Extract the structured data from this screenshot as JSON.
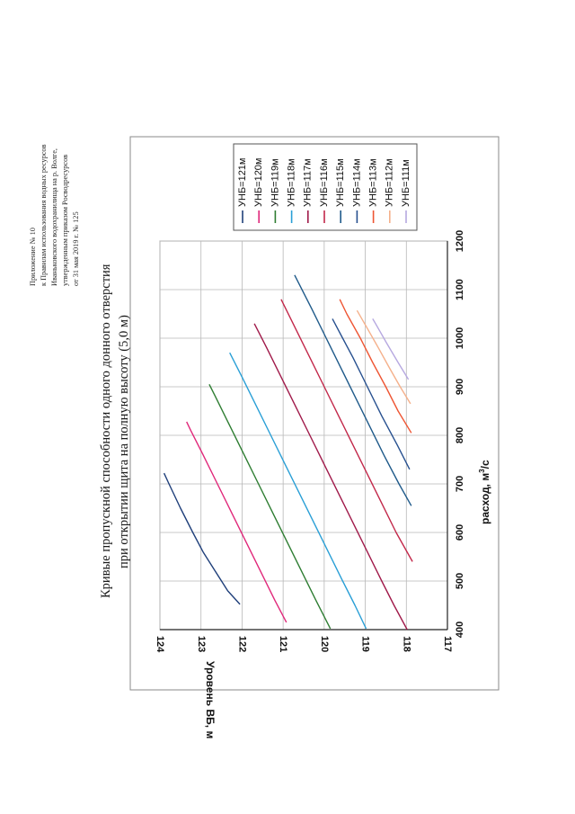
{
  "header": {
    "lines": [
      "Приложение № 10",
      "к Правилам использования водных ресурсов",
      "Иваньковского водохранилища на р. Волге,",
      "утвержденным приказом Росводресурсов",
      "от 31 мая 2019 г. № 125"
    ]
  },
  "chart_data": {
    "type": "line",
    "title": [
      "Кривые пропускной способности одного донного отверстия",
      "при открытии щита на полную высоту (5,0 м)"
    ],
    "xlabel_main": "расход, м",
    "xlabel_sup": "3",
    "xlabel_tail": "/с",
    "ylabel": "Уровень ВБ, м",
    "xlim": [
      400,
      1200
    ],
    "ylim": [
      117,
      124
    ],
    "xticks": [
      "400",
      "500",
      "600",
      "700",
      "800",
      "900",
      "1000",
      "1100",
      "1200"
    ],
    "yticks": [
      "117",
      "118",
      "119",
      "120",
      "121",
      "122",
      "123",
      "124"
    ],
    "grid": true,
    "rotation": "page rotated 90° counter-clockwise (landscape chart on portrait sheet)",
    "legend_position": "top-right",
    "series": [
      {
        "name": "УНБ=121м",
        "color": "#1f3f7a",
        "x": [
          452,
          480,
          520,
          560,
          600,
          650,
          700,
          722
        ],
        "y": [
          122.05,
          122.35,
          122.65,
          122.95,
          123.2,
          123.5,
          123.78,
          123.9
        ]
      },
      {
        "name": "УНБ=120м",
        "color": "#e0287a",
        "x": [
          415,
          460,
          520,
          580,
          640,
          700,
          760,
          810,
          828
        ],
        "y": [
          120.92,
          121.2,
          121.55,
          121.9,
          122.25,
          122.6,
          122.95,
          123.25,
          123.35
        ]
      },
      {
        "name": "УНБ=119м",
        "color": "#2e7d32",
        "x": [
          402,
          460,
          520,
          580,
          640,
          700,
          760,
          820,
          880,
          905
        ],
        "y": [
          119.85,
          120.2,
          120.55,
          120.9,
          121.25,
          121.6,
          121.95,
          122.3,
          122.65,
          122.8
        ]
      },
      {
        "name": "УНБ=118м",
        "color": "#2a9fd6",
        "x": [
          402,
          450,
          500,
          560,
          620,
          680,
          740,
          800,
          860,
          920,
          970
        ],
        "y": [
          118.98,
          119.25,
          119.55,
          119.9,
          120.25,
          120.6,
          120.95,
          121.3,
          121.65,
          122.0,
          122.3
        ]
      },
      {
        "name": "УНБ=117м",
        "color": "#a01a4a",
        "x": [
          400,
          450,
          500,
          560,
          620,
          680,
          740,
          800,
          860,
          920,
          980,
          1030
        ],
        "y": [
          117.98,
          118.3,
          118.6,
          118.95,
          119.3,
          119.65,
          120.0,
          120.35,
          120.7,
          121.05,
          121.4,
          121.7
        ]
      },
      {
        "name": "УНБ=116м",
        "color": "#c2284a",
        "x": [
          540,
          600,
          660,
          720,
          780,
          840,
          900,
          960,
          1020,
          1080
        ],
        "y": [
          117.85,
          118.25,
          118.6,
          118.95,
          119.3,
          119.65,
          120.0,
          120.35,
          120.7,
          121.05
        ]
      },
      {
        "name": "УНБ=115м",
        "color": "#1f5a8a",
        "x": [
          655,
          700,
          760,
          820,
          880,
          940,
          1000,
          1060,
          1130
        ],
        "y": [
          117.88,
          118.18,
          118.55,
          118.9,
          119.25,
          119.6,
          119.95,
          120.3,
          120.72
        ]
      },
      {
        "name": "УНБ=114м",
        "color": "#27508f",
        "x": [
          730,
          780,
          840,
          900,
          960,
          1000,
          1040
        ],
        "y": [
          117.92,
          118.22,
          118.6,
          118.95,
          119.3,
          119.55,
          119.8
        ]
      },
      {
        "name": "УНБ=113м",
        "color": "#ee5533",
        "x": [
          805,
          850,
          900,
          950,
          1000,
          1050,
          1080
        ],
        "y": [
          117.88,
          118.2,
          118.5,
          118.82,
          119.12,
          119.45,
          119.62
        ]
      },
      {
        "name": "УНБ=112м",
        "color": "#f5b08a",
        "x": [
          865,
          900,
          940,
          980,
          1020,
          1057
        ],
        "y": [
          117.9,
          118.15,
          118.42,
          118.68,
          118.95,
          119.2
        ]
      },
      {
        "name": "УНБ=111м",
        "color": "#b6a8e0",
        "x": [
          915,
          950,
          990,
          1030,
          1040
        ],
        "y": [
          117.95,
          118.2,
          118.48,
          118.75,
          118.82
        ]
      }
    ]
  }
}
